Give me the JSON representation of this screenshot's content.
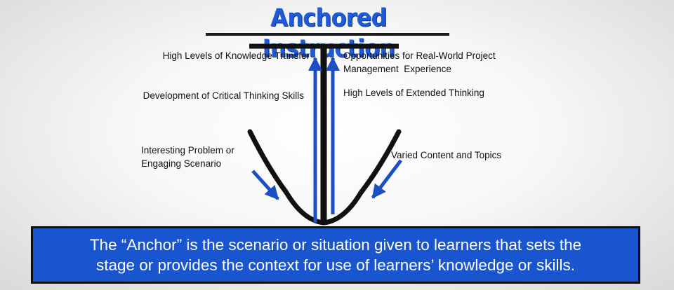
{
  "title": "Anchored Instruction",
  "labels": {
    "left_top": "High Levels of Knowledge Transfer",
    "left_middle": "Development of Critical Thinking Skills",
    "left_bottom_line1": "Interesting Problem or",
    "left_bottom_line2": "Engaging Scenario",
    "right_top_line1": "Opportunities for Real-World Project",
    "right_top_line2": "Management  Experience",
    "right_middle": "High Levels of Extended Thinking",
    "right_bottom": "Varied Content and Topics"
  },
  "caption": {
    "line1": "The “Anchor” is the scenario or situation given to learners that sets the",
    "line2": "stage or provides the context for use of learners’ knowledge or skills."
  },
  "colors": {
    "title": "#1f5bd6",
    "arrows": "#1d4fc4",
    "anchor": "#111111",
    "caption_background": "#1a55d0",
    "caption_text": "#ffffff"
  }
}
